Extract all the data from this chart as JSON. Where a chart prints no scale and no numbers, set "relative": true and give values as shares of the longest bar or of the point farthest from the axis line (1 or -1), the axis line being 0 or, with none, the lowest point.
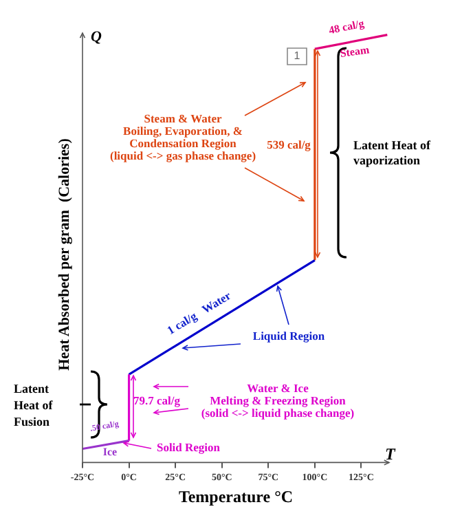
{
  "chart_data": {
    "type": "line",
    "relative": true,
    "xlabel": "Temperature °C",
    "ylabel": "Heat Absorbed per gram  (Calories)",
    "xlim": [
      -25,
      140
    ],
    "xticks": [
      {
        "value": -25,
        "label": "-25°C"
      },
      {
        "value": 0,
        "label": "0°C"
      },
      {
        "value": 25,
        "label": "25°C"
      },
      {
        "value": 50,
        "label": "50°C"
      },
      {
        "value": 75,
        "label": "75°C"
      },
      {
        "value": 100,
        "label": "100°C"
      },
      {
        "value": 125,
        "label": "125°C"
      }
    ],
    "series": [
      {
        "color": "#9933cc",
        "x": [
          -25,
          0
        ],
        "values": [
          0.032,
          0.051
        ]
      },
      {
        "color": "#dd00cc",
        "x": [
          0,
          0
        ],
        "values": [
          0.051,
          0.206
        ]
      },
      {
        "color": "#0000cc",
        "x": [
          0,
          100
        ],
        "values": [
          0.206,
          0.473
        ]
      },
      {
        "color": "#dd4411",
        "x": [
          100,
          100
        ],
        "values": [
          0.473,
          0.967
        ]
      },
      {
        "color": "#e0007a",
        "x": [
          100,
          139
        ],
        "values": [
          0.967,
          1
        ]
      }
    ],
    "grid": false,
    "legend": false,
    "marker": "none",
    "line_style": "solid",
    "annotations": [
      "Q",
      "T",
      "48 cal/g",
      "Steam",
      "1",
      "Steam & Water",
      "Boiling, Evaporation, &",
      "Condensation Region",
      "(liquid <-> gas phase change)",
      "539 cal/g",
      "Latent Heat of",
      "vaporization",
      "1 cal/g   Water",
      "Liquid Region",
      "Latent",
      "Heat of",
      "Fusion",
      "79.7 cal/g",
      "Water & Ice",
      "Melting & Freezing Region",
      "(solid <-> liquid phase change)",
      ".50 cal/g",
      "Ice",
      "Solid Region"
    ]
  }
}
